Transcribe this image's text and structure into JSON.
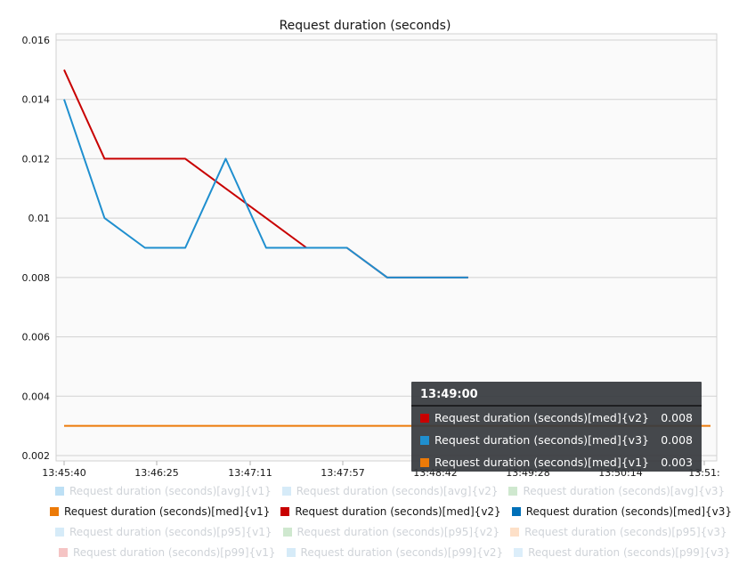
{
  "chart_data": {
    "type": "line",
    "title": "Request duration (seconds)",
    "xlabel": "",
    "ylabel": "",
    "x_ticks": [
      "13:45:40",
      "13:46:25",
      "13:47:11",
      "13:47:57",
      "13:48:42",
      "13:49:28",
      "13:50:14",
      "13:51:"
    ],
    "y_ticks": [
      "0.016",
      "0.014",
      "0.012",
      "0.01",
      "0.008",
      "0.006",
      "0.004",
      "0.002"
    ],
    "ylim": [
      0.002,
      0.016
    ],
    "xlim": [
      "13:45:40",
      "13:51:00"
    ],
    "grid": true,
    "series": [
      {
        "name": "Request duration (seconds)[med]{v2}",
        "color": "#c80000",
        "points": [
          [
            "13:45:40",
            0.015
          ],
          [
            "13:46:00",
            0.012
          ],
          [
            "13:46:20",
            0.012
          ],
          [
            "13:46:40",
            0.012
          ],
          [
            "13:47:00",
            0.011
          ],
          [
            "13:47:20",
            0.01
          ],
          [
            "13:47:40",
            0.009
          ],
          [
            "13:48:00",
            0.009
          ],
          [
            "13:48:20",
            0.008
          ],
          [
            "13:48:40",
            0.008
          ],
          [
            "13:49:00",
            0.008
          ]
        ]
      },
      {
        "name": "Request duration (seconds)[med]{v3}",
        "color": "#1f8fcf",
        "points": [
          [
            "13:45:40",
            0.014
          ],
          [
            "13:46:00",
            0.01
          ],
          [
            "13:46:20",
            0.009
          ],
          [
            "13:46:40",
            0.009
          ],
          [
            "13:47:00",
            0.012
          ],
          [
            "13:47:20",
            0.009
          ],
          [
            "13:47:40",
            0.009
          ],
          [
            "13:48:00",
            0.009
          ],
          [
            "13:48:20",
            0.008
          ],
          [
            "13:48:40",
            0.008
          ],
          [
            "13:49:00",
            0.008
          ]
        ]
      },
      {
        "name": "Request duration (seconds)[med]{v1}",
        "color": "#ec7a08",
        "points": [
          [
            "13:45:40",
            0.003
          ],
          [
            "13:51:00",
            0.003
          ]
        ]
      }
    ]
  },
  "tooltip": {
    "title": "13:49:00",
    "rows": [
      {
        "label": "Request duration (seconds)[med]{v2}",
        "value": "0.008",
        "color": "#c80000"
      },
      {
        "label": "Request duration (seconds)[med]{v3}",
        "value": "0.008",
        "color": "#1f8fcf"
      },
      {
        "label": "Request duration (seconds)[med]{v1}",
        "value": "0.003",
        "color": "#ec7a08"
      }
    ]
  },
  "legend": {
    "rows": [
      [
        {
          "label": "Request duration (seconds)[avg]{v1}",
          "color": "#bde0f5",
          "active": false
        },
        {
          "label": "Request duration (seconds)[avg]{v2}",
          "color": "#d6ebf8",
          "active": false
        },
        {
          "label": "Request duration (seconds)[avg]{v3}",
          "color": "#cfe8cf",
          "active": false
        }
      ],
      [
        {
          "label": "Request duration (seconds)[med]{v1}",
          "color": "#ec7a08",
          "active": true
        },
        {
          "label": "Request duration (seconds)[med]{v2}",
          "color": "#c80000",
          "active": true
        },
        {
          "label": "Request duration (seconds)[med]{v3}",
          "color": "#0070b8",
          "active": true
        }
      ],
      [
        {
          "label": "Request duration (seconds)[p95]{v1}",
          "color": "#d6ebf8",
          "active": false
        },
        {
          "label": "Request duration (seconds)[p95]{v2}",
          "color": "#cfe8cf",
          "active": false
        },
        {
          "label": "Request duration (seconds)[p95]{v3}",
          "color": "#fde0c8",
          "active": false
        }
      ],
      [
        {
          "label": "Request duration (seconds)[p99]{v1}",
          "color": "#f5c4c4",
          "active": false
        },
        {
          "label": "Request duration (seconds)[p99]{v2}",
          "color": "#d6ebf8",
          "active": false
        },
        {
          "label": "Request duration (seconds)[p99]{v3}",
          "color": "#dceefa",
          "active": false
        }
      ]
    ]
  }
}
